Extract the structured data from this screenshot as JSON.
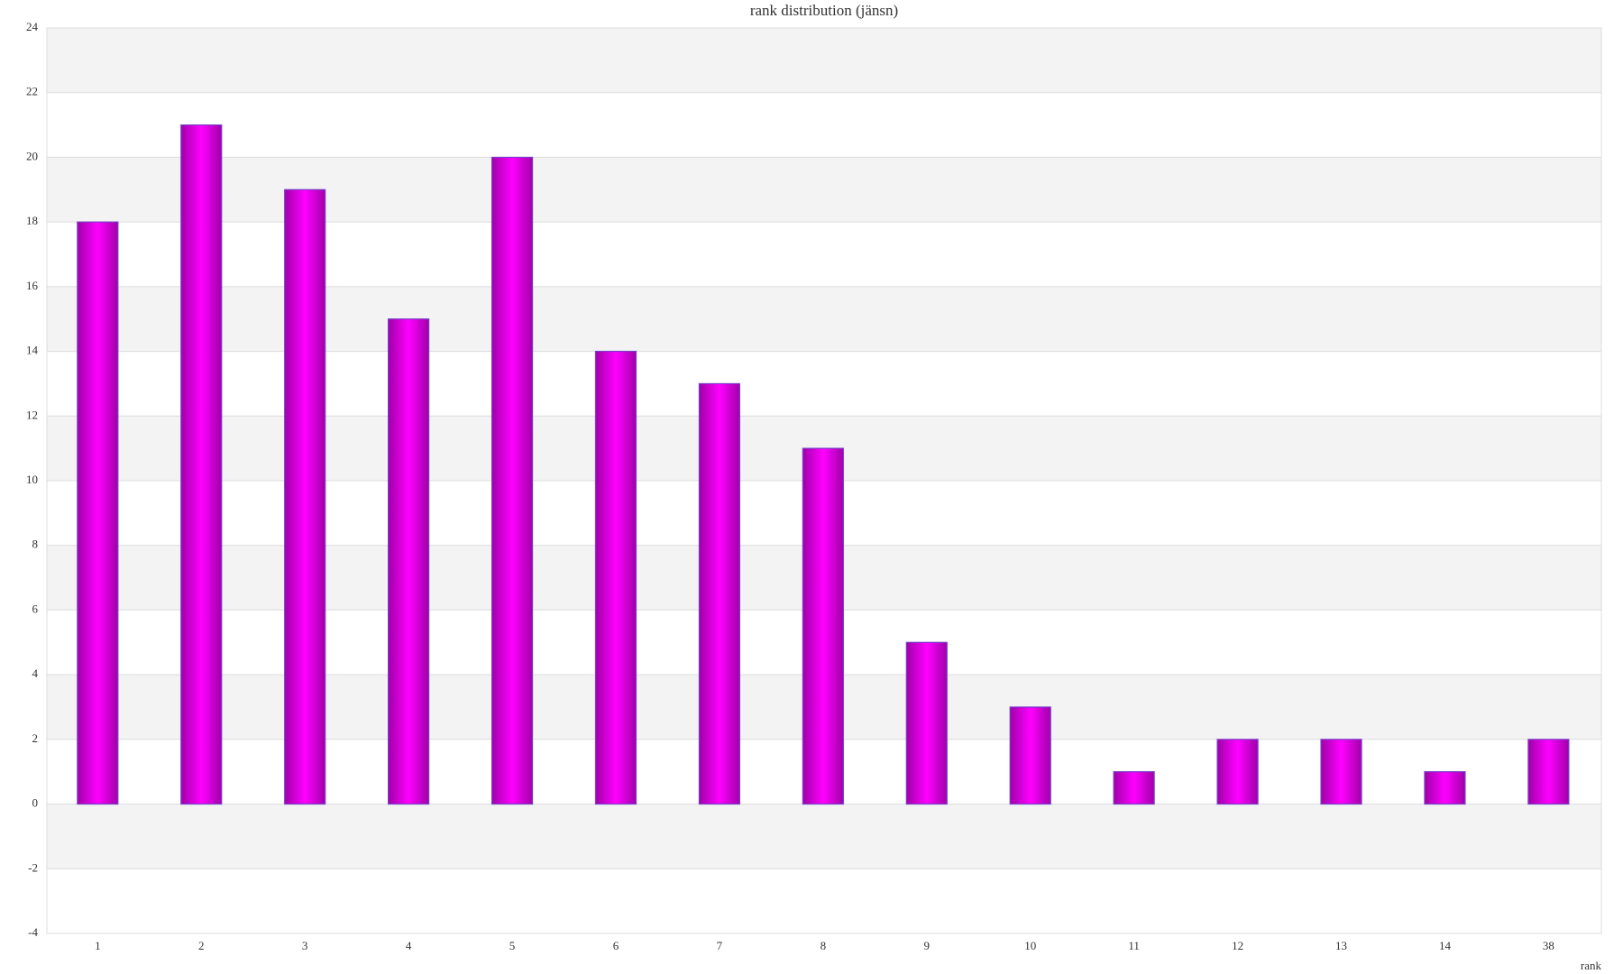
{
  "chart_data": {
    "type": "bar",
    "title": "rank distribution (jänsn)",
    "x_label": "rank",
    "categories": [
      "1",
      "2",
      "3",
      "4",
      "5",
      "6",
      "7",
      "8",
      "9",
      "10",
      "11",
      "12",
      "13",
      "14",
      "38"
    ],
    "values": [
      18,
      21,
      19,
      15,
      20,
      14,
      13,
      11,
      5,
      3,
      1,
      2,
      2,
      1,
      2
    ],
    "color": "#ff00ff",
    "ylim": [
      -4,
      24
    ],
    "yticks": [
      -4,
      -2,
      0,
      2,
      4,
      6,
      8,
      10,
      12,
      14,
      16,
      18,
      20,
      22,
      24
    ],
    "grid": true
  }
}
